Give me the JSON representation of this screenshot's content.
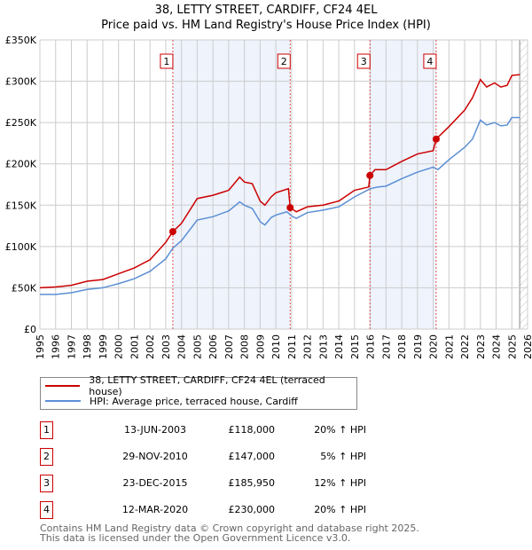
{
  "title": "38, LETTY STREET, CARDIFF, CF24 4EL",
  "subtitle": "Price paid vs. HM Land Registry's House Price Index (HPI)",
  "colors": {
    "property": "#cc0000",
    "hpi": "#5b8fd4",
    "shade": "#eef3fc"
  },
  "chart_data": {
    "type": "line",
    "xlim": [
      1995,
      2026
    ],
    "ylim": [
      0,
      350000
    ],
    "x_ticks": [
      "1995",
      "1996",
      "1997",
      "1998",
      "1999",
      "2000",
      "2001",
      "2002",
      "2003",
      "2004",
      "2005",
      "2006",
      "2007",
      "2008",
      "2009",
      "2010",
      "2011",
      "2012",
      "2013",
      "2014",
      "2015",
      "2016",
      "2017",
      "2018",
      "2019",
      "2020",
      "2021",
      "2022",
      "2023",
      "2024",
      "2025",
      "2026"
    ],
    "y_ticks": [
      {
        "v": 0,
        "label": "£0"
      },
      {
        "v": 50000,
        "label": "£50K"
      },
      {
        "v": 100000,
        "label": "£100K"
      },
      {
        "v": 150000,
        "label": "£150K"
      },
      {
        "v": 200000,
        "label": "£200K"
      },
      {
        "v": 250000,
        "label": "£250K"
      },
      {
        "v": 300000,
        "label": "£300K"
      },
      {
        "v": 350000,
        "label": "£350K"
      }
    ],
    "grid": true,
    "series": [
      {
        "name": "38, LETTY STREET, CARDIFF, CF24 4EL (terraced house)",
        "color": "#cc0000",
        "points": [
          [
            1995,
            50
          ],
          [
            1996,
            51
          ],
          [
            1997,
            53
          ],
          [
            1998,
            58
          ],
          [
            1999,
            60
          ],
          [
            2000,
            67
          ],
          [
            2001,
            74
          ],
          [
            2002,
            84
          ],
          [
            2003,
            105
          ],
          [
            2003.45,
            118
          ],
          [
            2004,
            128
          ],
          [
            2005,
            158
          ],
          [
            2006,
            162
          ],
          [
            2007,
            168
          ],
          [
            2007.7,
            184
          ],
          [
            2008,
            178
          ],
          [
            2008.5,
            176
          ],
          [
            2009,
            155
          ],
          [
            2009.3,
            150
          ],
          [
            2009.7,
            160
          ],
          [
            2010,
            165
          ],
          [
            2010.8,
            170
          ],
          [
            2010.91,
            147
          ],
          [
            2011.3,
            142
          ],
          [
            2012,
            148
          ],
          [
            2013,
            150
          ],
          [
            2014,
            155
          ],
          [
            2015,
            168
          ],
          [
            2015.9,
            172
          ],
          [
            2015.98,
            186
          ],
          [
            2016.3,
            193
          ],
          [
            2017,
            193
          ],
          [
            2018,
            203
          ],
          [
            2019,
            212
          ],
          [
            2020,
            216
          ],
          [
            2020.19,
            230
          ],
          [
            2021,
            245
          ],
          [
            2022,
            265
          ],
          [
            2022.5,
            280
          ],
          [
            2023,
            302
          ],
          [
            2023.4,
            293
          ],
          [
            2023.9,
            298
          ],
          [
            2024.3,
            293
          ],
          [
            2024.7,
            295
          ],
          [
            2025,
            307
          ],
          [
            2025.5,
            308
          ]
        ]
      },
      {
        "name": "HPI: Average price, terraced house, Cardiff",
        "color": "#5b8fd4",
        "points": [
          [
            1995,
            42
          ],
          [
            1996,
            42
          ],
          [
            1997,
            44
          ],
          [
            1998,
            48
          ],
          [
            1999,
            50
          ],
          [
            2000,
            55
          ],
          [
            2001,
            61
          ],
          [
            2002,
            70
          ],
          [
            2003,
            85
          ],
          [
            2003.45,
            98
          ],
          [
            2004,
            107
          ],
          [
            2005,
            132
          ],
          [
            2006,
            136
          ],
          [
            2007,
            143
          ],
          [
            2007.7,
            154
          ],
          [
            2008,
            150
          ],
          [
            2008.5,
            146
          ],
          [
            2009,
            130
          ],
          [
            2009.3,
            126
          ],
          [
            2009.7,
            135
          ],
          [
            2010,
            138
          ],
          [
            2010.7,
            142
          ],
          [
            2011,
            137
          ],
          [
            2011.3,
            134
          ],
          [
            2012,
            141
          ],
          [
            2013,
            144
          ],
          [
            2014,
            148
          ],
          [
            2015,
            160
          ],
          [
            2016,
            170
          ],
          [
            2016.5,
            172
          ],
          [
            2017,
            173
          ],
          [
            2018,
            182
          ],
          [
            2019,
            190
          ],
          [
            2020,
            196
          ],
          [
            2020.3,
            193
          ],
          [
            2021,
            205
          ],
          [
            2022,
            220
          ],
          [
            2022.5,
            230
          ],
          [
            2023,
            253
          ],
          [
            2023.4,
            247
          ],
          [
            2023.9,
            250
          ],
          [
            2024.3,
            246
          ],
          [
            2024.7,
            247
          ],
          [
            2025,
            256
          ],
          [
            2025.5,
            256
          ]
        ]
      }
    ],
    "sales": [
      {
        "n": "1",
        "x": 2003.45,
        "y": 118
      },
      {
        "n": "2",
        "x": 2010.91,
        "y": 147
      },
      {
        "n": "3",
        "x": 2015.98,
        "y": 185.95
      },
      {
        "n": "4",
        "x": 2020.19,
        "y": 230
      }
    ],
    "shaded": [
      [
        2003.45,
        2010.91
      ],
      [
        2015.98,
        2020.19
      ]
    ],
    "forecast_from": 2025.5
  },
  "table": [
    {
      "n": "1",
      "date": "13-JUN-2003",
      "price": "£118,000",
      "hpi": "20% ↑ HPI"
    },
    {
      "n": "2",
      "date": "29-NOV-2010",
      "price": "£147,000",
      "hpi": "5% ↑ HPI"
    },
    {
      "n": "3",
      "date": "23-DEC-2015",
      "price": "£185,950",
      "hpi": "12% ↑ HPI"
    },
    {
      "n": "4",
      "date": "12-MAR-2020",
      "price": "£230,000",
      "hpi": "20% ↑ HPI"
    }
  ],
  "footer": [
    "Contains HM Land Registry data © Crown copyright and database right 2025.",
    "This data is licensed under the Open Government Licence v3.0."
  ]
}
